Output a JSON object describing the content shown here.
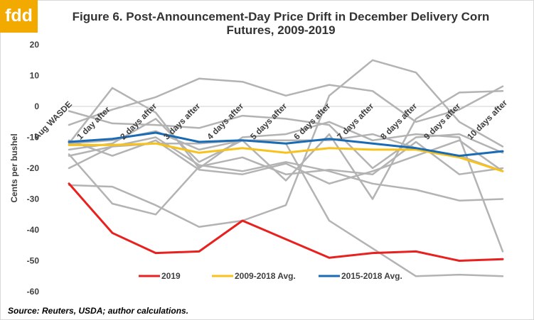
{
  "logo_text": "fdd",
  "source_note": "Source: Reuters, USDA; author calculations.",
  "chart_data": {
    "type": "line",
    "title": "Figure 6. Post-Announcement-Day Price Drift in December Delivery Corn Futures, 2009-2019",
    "ylabel": "Cents per bushel",
    "xlabel": "",
    "ylim": [
      -60,
      20
    ],
    "yticks": [
      20,
      10,
      0,
      -10,
      -20,
      -30,
      -40,
      -50,
      -60
    ],
    "grid": false,
    "legend_position": "bottom-center",
    "categories": [
      "Aug WASDE",
      "1 day after",
      "2 days after",
      "3 days after",
      "4 days after",
      "5 days after",
      "6 days after",
      "7 days after",
      "8 days after",
      "9 days after",
      "10 days after"
    ],
    "series": [
      {
        "name": "",
        "color": "#b3b3b3",
        "values": [
          -1.5,
          -5.5,
          -6,
          -7,
          -3,
          -4,
          -6,
          -20,
          -10,
          -9,
          -15
        ]
      },
      {
        "name": "",
        "color": "#b3b3b3",
        "values": [
          -12,
          6,
          -2,
          -20,
          -10,
          -9,
          -5,
          -11,
          -9,
          -10,
          -47
        ]
      },
      {
        "name": "",
        "color": "#b3b3b3",
        "values": [
          -14,
          -12,
          -4,
          -18,
          -11,
          -24,
          -9,
          -30,
          -4,
          4.5,
          5
        ]
      },
      {
        "name": "",
        "color": "#b3b3b3",
        "values": [
          -20,
          -13,
          -10,
          -19,
          -21,
          -18,
          -21,
          -25,
          -27,
          -30.5,
          -30
        ]
      },
      {
        "name": "",
        "color": "#b3b3b3",
        "values": [
          -15.5,
          -31.5,
          -35,
          -19.5,
          -16.5,
          -22,
          -20.5,
          -22,
          -11.5,
          -22,
          -20
        ]
      },
      {
        "name": "",
        "color": "#b3b3b3",
        "values": [
          -11,
          -16,
          -11,
          -20.5,
          -22,
          -18.5,
          -25,
          -21,
          -16,
          -11,
          -21
        ]
      },
      {
        "name": "",
        "color": "#b3b3b3",
        "values": [
          -25.5,
          -26,
          -32,
          -39,
          -37,
          -32,
          3.5,
          15,
          11,
          -5,
          -13
        ]
      },
      {
        "name": "",
        "color": "#b3b3b3",
        "values": [
          -6,
          -1,
          3,
          9,
          8,
          3.5,
          7,
          5,
          -5,
          -1,
          6.5
        ]
      },
      {
        "name": "",
        "color": "#b3b3b3",
        "values": [
          -16,
          -13,
          -12,
          -12,
          -11,
          -12,
          -37,
          -46,
          -55,
          -54.5,
          -55
        ]
      },
      {
        "name": "",
        "color": "#b3b3b3",
        "values": [
          -12,
          -11,
          -8,
          -14,
          -11,
          -11,
          -11,
          -9,
          -13.5,
          -16,
          -21
        ]
      },
      {
        "name": "2019",
        "color": "#e8211f",
        "width": 3,
        "values": [
          -25,
          -41,
          -47.5,
          -47,
          -37,
          -43,
          -49,
          -47.5,
          -47,
          -50,
          -49.5
        ]
      },
      {
        "name": "2009-2018 Avg.",
        "color": "#f7c21b",
        "width": 3,
        "values": [
          -12.5,
          -12.5,
          -12,
          -15,
          -13.5,
          -15,
          -13.5,
          -14,
          -14,
          -16.5,
          -21
        ]
      },
      {
        "name": "2015-2018 Avg.",
        "color": "#1a6bb4",
        "width": 3,
        "values": [
          -11.5,
          -10.5,
          -8.5,
          -11.5,
          -11,
          -12,
          -10.5,
          -12,
          -13.5,
          -16,
          -14.5
        ]
      }
    ]
  }
}
